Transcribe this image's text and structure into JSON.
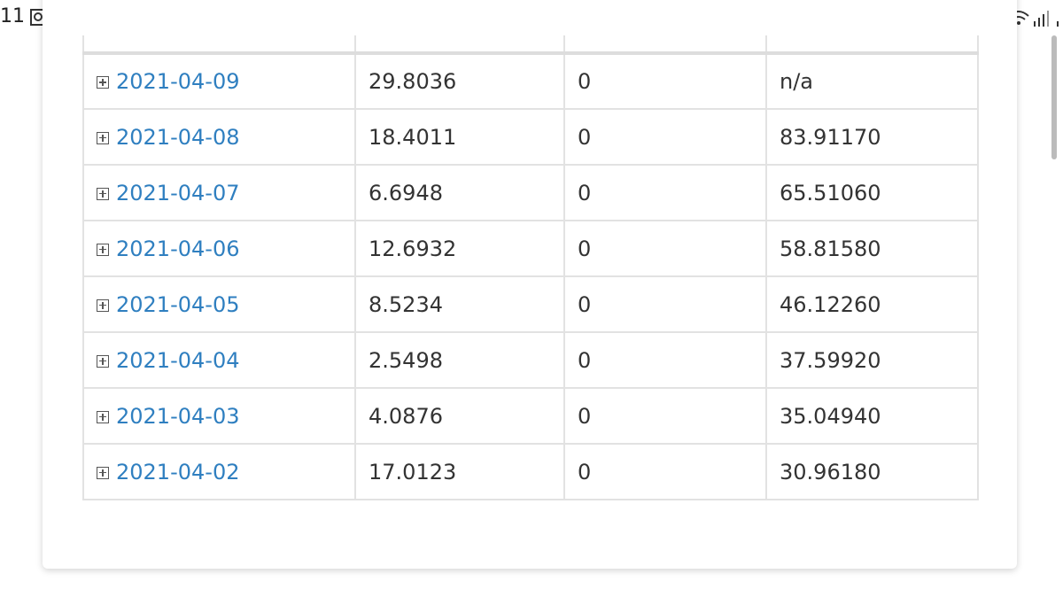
{
  "status_bar": {
    "time": "11"
  },
  "table": {
    "rows": [
      [
        "2021-04-09",
        "29.8036",
        "0",
        "n/a"
      ],
      [
        "2021-04-08",
        "18.4011",
        "0",
        "83.91170"
      ],
      [
        "2021-04-07",
        "6.6948",
        "0",
        "65.51060"
      ],
      [
        "2021-04-06",
        "12.6932",
        "0",
        "58.81580"
      ],
      [
        "2021-04-05",
        "8.5234",
        "0",
        "46.12260"
      ],
      [
        "2021-04-04",
        "2.5498",
        "0",
        "37.59920"
      ],
      [
        "2021-04-03",
        "4.0876",
        "0",
        "35.04940"
      ],
      [
        "2021-04-02",
        "17.0123",
        "0",
        "30.96180"
      ]
    ]
  }
}
